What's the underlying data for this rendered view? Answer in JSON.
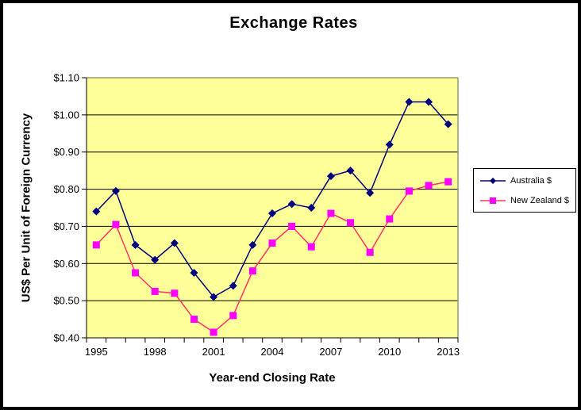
{
  "frame": {
    "background": "#ffffff",
    "border_color": "#000000"
  },
  "chart_data": {
    "type": "line",
    "title": "Exchange Rates",
    "xlabel": "Year-end Closing Rate",
    "ylabel": "US$ Per Unit of Foreign Currency",
    "x": [
      1995,
      1996,
      1997,
      1998,
      1999,
      2000,
      2001,
      2002,
      2003,
      2004,
      2005,
      2006,
      2007,
      2008,
      2009,
      2010,
      2011,
      2012,
      2013
    ],
    "x_tick_indices": [
      0,
      3,
      6,
      9,
      12,
      15,
      18
    ],
    "x_tick_labels": [
      "1995",
      "1998",
      "2001",
      "2004",
      "2007",
      "2010",
      "2013"
    ],
    "ylim": [
      0.4,
      1.1
    ],
    "y_ticks": [
      0.4,
      0.5,
      0.6,
      0.7,
      0.8,
      0.9,
      1.0,
      1.1
    ],
    "y_tick_labels": [
      "$0.40",
      "$0.50",
      "$0.60",
      "$0.70",
      "$0.80",
      "$0.90",
      "$1.00",
      "$1.10"
    ],
    "grid": true,
    "plot_background": "#ffff99",
    "gridline_color": "#000000",
    "plot_border_color": "#999966",
    "axis_color": "#000000",
    "legend_position": "right",
    "series": [
      {
        "name": "Australia $",
        "marker": "diamond",
        "line_color": "#000080",
        "marker_color": "#000080",
        "values": [
          0.74,
          0.795,
          0.65,
          0.61,
          0.655,
          0.575,
          0.51,
          0.54,
          0.65,
          0.735,
          0.76,
          0.75,
          0.835,
          0.85,
          0.79,
          0.92,
          1.035,
          1.035,
          0.975
        ]
      },
      {
        "name": "New Zealand $",
        "marker": "square",
        "line_color": "#ff3366",
        "marker_color": "#ff00ff",
        "values": [
          0.65,
          0.705,
          0.575,
          0.525,
          0.52,
          0.45,
          0.415,
          0.46,
          0.58,
          0.655,
          0.7,
          0.645,
          0.735,
          0.71,
          0.63,
          0.72,
          0.795,
          0.81,
          0.82
        ]
      }
    ]
  }
}
